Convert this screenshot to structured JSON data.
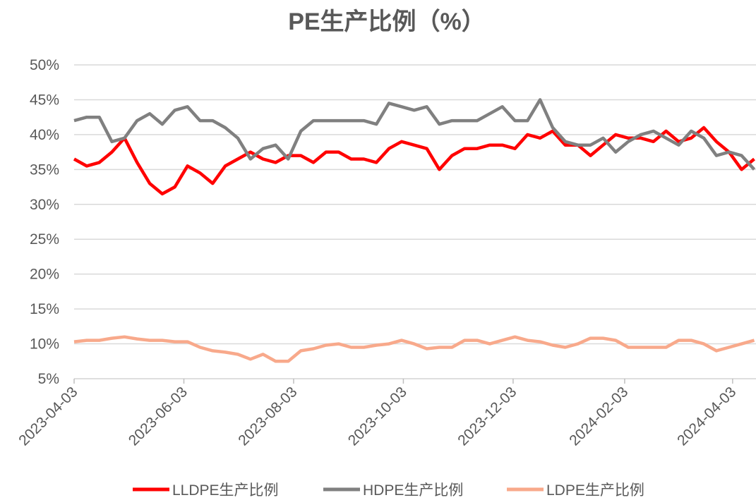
{
  "chart_data": {
    "type": "line",
    "title": "PE生产比例（%）",
    "x": [
      "2023-04-03",
      "2023-04-10",
      "2023-04-17",
      "2023-04-24",
      "2023-05-01",
      "2023-05-08",
      "2023-05-15",
      "2023-05-22",
      "2023-05-29",
      "2023-06-05",
      "2023-06-12",
      "2023-06-19",
      "2023-06-26",
      "2023-07-03",
      "2023-07-10",
      "2023-07-17",
      "2023-07-24",
      "2023-07-31",
      "2023-08-07",
      "2023-08-14",
      "2023-08-21",
      "2023-08-28",
      "2023-09-04",
      "2023-09-11",
      "2023-09-18",
      "2023-09-25",
      "2023-10-02",
      "2023-10-09",
      "2023-10-16",
      "2023-10-23",
      "2023-10-30",
      "2023-11-06",
      "2023-11-13",
      "2023-11-20",
      "2023-11-27",
      "2023-12-04",
      "2023-12-11",
      "2023-12-18",
      "2023-12-25",
      "2024-01-01",
      "2024-01-08",
      "2024-01-15",
      "2024-01-22",
      "2024-01-29",
      "2024-02-05",
      "2024-02-12",
      "2024-02-19",
      "2024-02-26",
      "2024-03-04",
      "2024-03-11",
      "2024-03-18",
      "2024-03-25",
      "2024-04-01",
      "2024-04-08",
      "2024-04-15"
    ],
    "series": [
      {
        "name": "LLDPE生产比例",
        "color": "#ff0000",
        "values": [
          36.5,
          35.5,
          36,
          37.5,
          39.5,
          36,
          33,
          31.5,
          32.5,
          35.5,
          34.5,
          33,
          35.5,
          36.5,
          37.5,
          36.5,
          36,
          37,
          37,
          36,
          37.5,
          37.5,
          36.5,
          36.5,
          36,
          38,
          39,
          38.5,
          38,
          35,
          37,
          38,
          38,
          38.5,
          38.5,
          38,
          40,
          39.5,
          40.5,
          38.5,
          38.5,
          37,
          38.5,
          40,
          39.5,
          39.5,
          39,
          40.5,
          39,
          39.5,
          41,
          39,
          37.5,
          35,
          36.5
        ]
      },
      {
        "name": "HDPE生产比例",
        "color": "#808080",
        "values": [
          42,
          42.5,
          42.5,
          39,
          39.5,
          42,
          43,
          41.5,
          43.5,
          44,
          42,
          42,
          41,
          39.5,
          36.5,
          38,
          38.5,
          36.5,
          40.5,
          42,
          42,
          42,
          42,
          42,
          41.5,
          44.5,
          44,
          43.5,
          44,
          41.5,
          42,
          42,
          42,
          43,
          44,
          42,
          42,
          45,
          41,
          39,
          38.5,
          38.5,
          39.5,
          37.5,
          39,
          40,
          40.5,
          39.5,
          38.5,
          40.5,
          39.5,
          37,
          37.5,
          37,
          35
        ]
      },
      {
        "name": "LDPE生产比例",
        "color": "#f8a98b",
        "values": [
          10.3,
          10.5,
          10.5,
          10.8,
          11,
          10.7,
          10.5,
          10.5,
          10.3,
          10.3,
          9.5,
          9,
          8.8,
          8.5,
          7.8,
          8.5,
          7.5,
          7.5,
          9,
          9.3,
          9.8,
          10,
          9.5,
          9.5,
          9.8,
          10,
          10.5,
          10,
          9.3,
          9.5,
          9.5,
          10.5,
          10.5,
          10,
          10.5,
          11,
          10.5,
          10.3,
          9.8,
          9.5,
          10,
          10.8,
          10.8,
          10.5,
          9.5,
          9.5,
          9.5,
          9.5,
          10.5,
          10.5,
          10,
          9,
          9.5,
          10,
          10.5
        ]
      }
    ],
    "xlim": [
      "2023-04-03",
      "2024-04-16"
    ],
    "xticks": [
      "2023-04-03",
      "2023-06-03",
      "2023-08-03",
      "2023-10-03",
      "2023-12-03",
      "2024-02-03",
      "2024-04-03"
    ],
    "ylim": [
      5,
      50
    ],
    "yticks": [
      {
        "value": 5,
        "label": "5%"
      },
      {
        "value": 10,
        "label": "10%"
      },
      {
        "value": 15,
        "label": "15%"
      },
      {
        "value": 20,
        "label": "20%"
      },
      {
        "value": 25,
        "label": "25%"
      },
      {
        "value": 30,
        "label": "30%"
      },
      {
        "value": 35,
        "label": "35%"
      },
      {
        "value": 40,
        "label": "40%"
      },
      {
        "value": 45,
        "label": "45%"
      },
      {
        "value": 50,
        "label": "50%"
      }
    ],
    "grid": true,
    "legend": "bottom"
  }
}
